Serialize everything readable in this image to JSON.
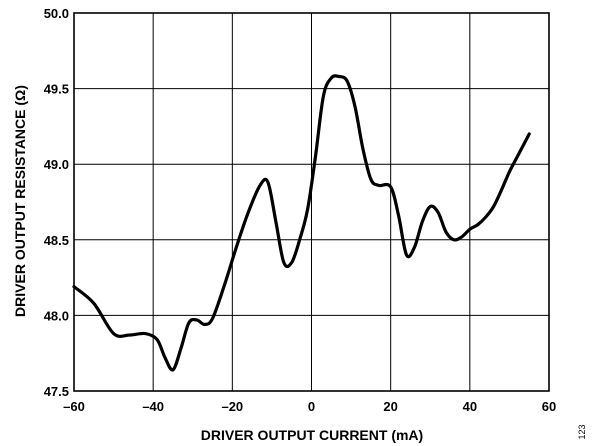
{
  "chart_data": {
    "type": "line",
    "title": "",
    "xlabel": "DRIVER OUTPUT CURRENT (mA)",
    "ylabel": "DRIVER OUTPUT RESISTANCE (Ω)",
    "xlim": [
      -60,
      60
    ],
    "ylim": [
      47.5,
      50.0
    ],
    "grid": true,
    "legend": "none",
    "x_ticks": [
      -60,
      -40,
      -20,
      0,
      20,
      40,
      60
    ],
    "x_tick_labels": [
      "–60",
      "–40",
      "–20",
      "0",
      "20",
      "40",
      "60"
    ],
    "y_ticks": [
      47.5,
      48.0,
      48.5,
      49.0,
      49.5,
      50.0
    ],
    "y_tick_labels": [
      "47.5",
      "48.0",
      "48.5",
      "49.0",
      "49.5",
      "50.0"
    ],
    "series": [
      {
        "color": "#000000",
        "x": [
          -60,
          -55,
          -50,
          -46,
          -42,
          -39,
          -37,
          -35,
          -33,
          -31,
          -29,
          -27,
          -25,
          -22,
          -19,
          -16,
          -13,
          -11,
          -9,
          -7,
          -5,
          -3,
          -1,
          1,
          3,
          5,
          7,
          9,
          11,
          13,
          15,
          17,
          20,
          22,
          24,
          26,
          28,
          30,
          32,
          34,
          36,
          38,
          40,
          42,
          44,
          46,
          48,
          50,
          52,
          55
        ],
        "y": [
          48.19,
          48.08,
          47.88,
          47.87,
          47.88,
          47.84,
          47.72,
          47.64,
          47.78,
          47.95,
          47.97,
          47.94,
          47.98,
          48.2,
          48.45,
          48.68,
          48.86,
          48.88,
          48.62,
          48.35,
          48.35,
          48.5,
          48.7,
          49.05,
          49.45,
          49.57,
          49.58,
          49.55,
          49.38,
          49.1,
          48.9,
          48.86,
          48.85,
          48.66,
          48.4,
          48.45,
          48.62,
          48.72,
          48.68,
          48.55,
          48.5,
          48.52,
          48.57,
          48.6,
          48.65,
          48.72,
          48.83,
          48.95,
          49.05,
          49.2
        ]
      }
    ]
  },
  "side_note": "123"
}
